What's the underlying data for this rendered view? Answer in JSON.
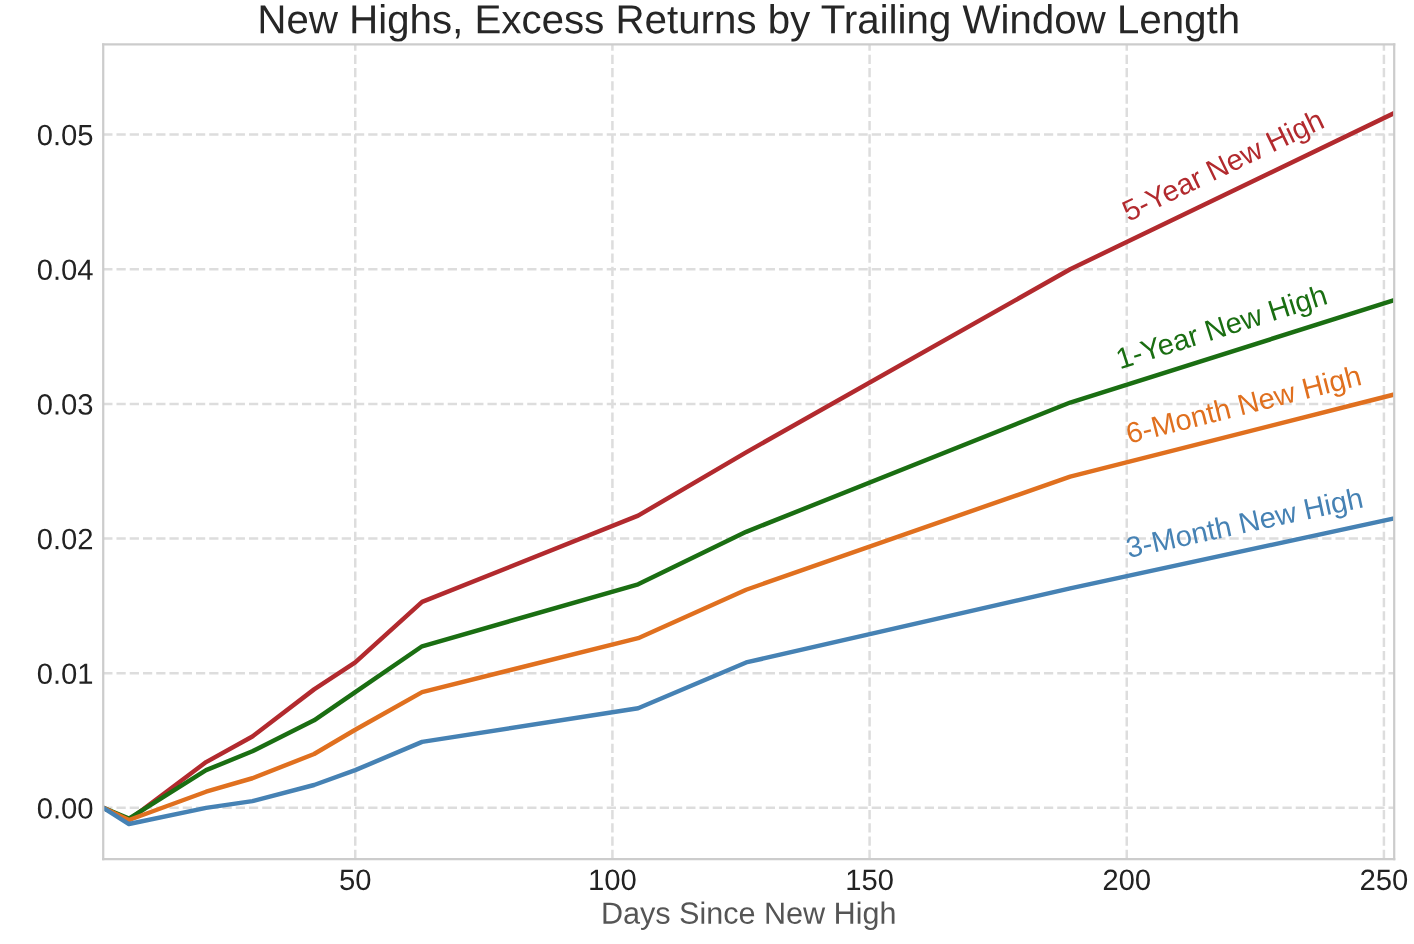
{
  "chart_data": {
    "type": "line",
    "title": "New Highs, Excess Returns by Trailing Window Length",
    "xlabel": "Days Since New High",
    "x": [
      1,
      6,
      21,
      30,
      42,
      50,
      63,
      105,
      126,
      189,
      252
    ],
    "series": [
      {
        "color": "#b22a2e",
        "values": [
          0,
          -0.0009,
          0.0034,
          0.0053,
          0.0088,
          0.0108,
          0.0153,
          0.0217,
          0.0264,
          0.04,
          0.0516
        ]
      },
      {
        "color": "#1a6e12",
        "values": [
          0,
          -0.0008,
          0.0028,
          0.0042,
          0.0065,
          0.0086,
          0.012,
          0.0166,
          0.0205,
          0.0301,
          0.0377
        ]
      },
      {
        "color": "#e0701f",
        "values": [
          0,
          -0.0009,
          0.0012,
          0.0022,
          0.004,
          0.0058,
          0.0086,
          0.0126,
          0.0162,
          0.0246,
          0.0307
        ]
      },
      {
        "color": "#4682b4",
        "values": [
          0,
          -0.0012,
          0,
          0.0005,
          0.0017,
          0.0028,
          0.0049,
          0.0074,
          0.0108,
          0.0163,
          0.0215
        ]
      }
    ],
    "annotations": [
      {
        "text": "5-Year New High",
        "x": 221,
        "y": 0.0459
      },
      {
        "text": "1-Year New High",
        "x": 220,
        "y": 0.0338
      },
      {
        "text": "6-Month New High",
        "x": 224,
        "y": 0.028
      },
      {
        "text": "3-Month New High",
        "x": 224,
        "y": 0.0192
      }
    ],
    "xlim": [
      1,
      252
    ],
    "ylim": [
      -0.0038,
      0.0567
    ],
    "xticks": [
      50,
      100,
      150,
      200,
      250
    ],
    "yticks": [
      {
        "value": 0,
        "label": "0.00"
      },
      {
        "value": 0.01,
        "label": "0.01"
      },
      {
        "value": 0.02,
        "label": "0.02"
      },
      {
        "value": 0.03,
        "label": "0.03"
      },
      {
        "value": 0.04,
        "label": "0.04"
      },
      {
        "value": 0.05,
        "label": "0.05"
      }
    ],
    "grid": true,
    "legend": false,
    "line_style": "solid",
    "marker": "none"
  }
}
